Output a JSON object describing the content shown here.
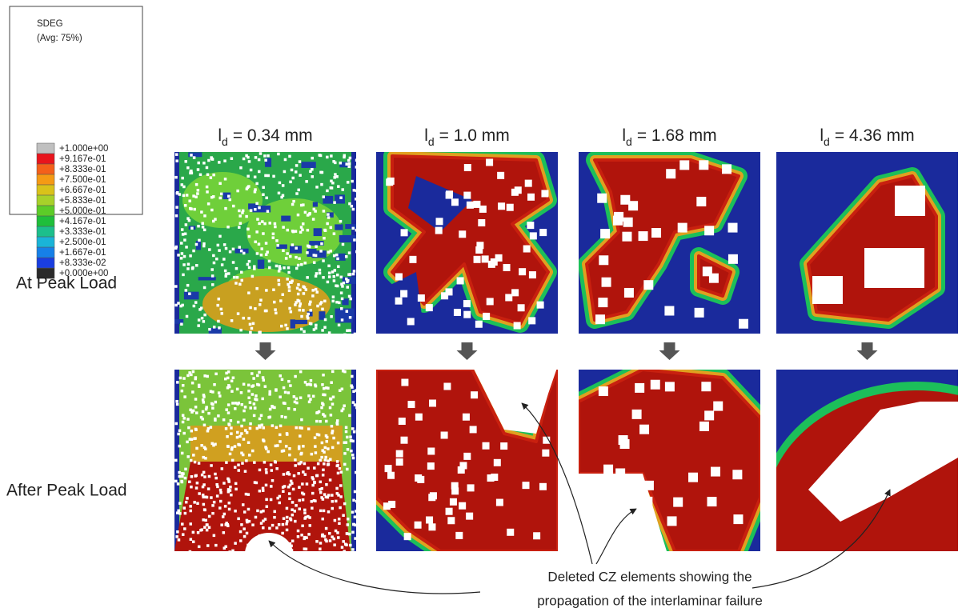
{
  "legend": {
    "title": "SDEG",
    "subtitle": "(Avg: 75%)",
    "labels": [
      "+1.000e+00",
      "+9.167e-01",
      "+8.333e-01",
      "+7.500e-01",
      "+6.667e-01",
      "+5.833e-01",
      "+5.000e-01",
      "+4.167e-01",
      "+3.333e-01",
      "+2.500e-01",
      "+1.667e-01",
      "+8.333e-02",
      "+0.000e+00"
    ],
    "colors": [
      "#c0c0c0",
      "#e8141c",
      "#f4601a",
      "#f59a14",
      "#d9c21a",
      "#a8d12a",
      "#5ccc28",
      "#1fbf3a",
      "#1cbf8c",
      "#1ab4d8",
      "#1680e8",
      "#1a3ee0",
      "#2a2a2a"
    ]
  },
  "columns": [
    {
      "symbol": "l",
      "subscript": "d",
      "text": "= 0.34 mm"
    },
    {
      "symbol": "l",
      "subscript": "d",
      "text": "=  1.0 mm"
    },
    {
      "symbol": "l",
      "subscript": "d",
      "text": "= 1.68 mm"
    },
    {
      "symbol": "l",
      "subscript": "d",
      "text": "=  4.36 mm"
    }
  ],
  "rows": [
    "At Peak Load",
    "After Peak Load"
  ],
  "annotation": [
    "Deleted CZ elements showing the",
    "propagation of the interlaminar failure"
  ]
}
